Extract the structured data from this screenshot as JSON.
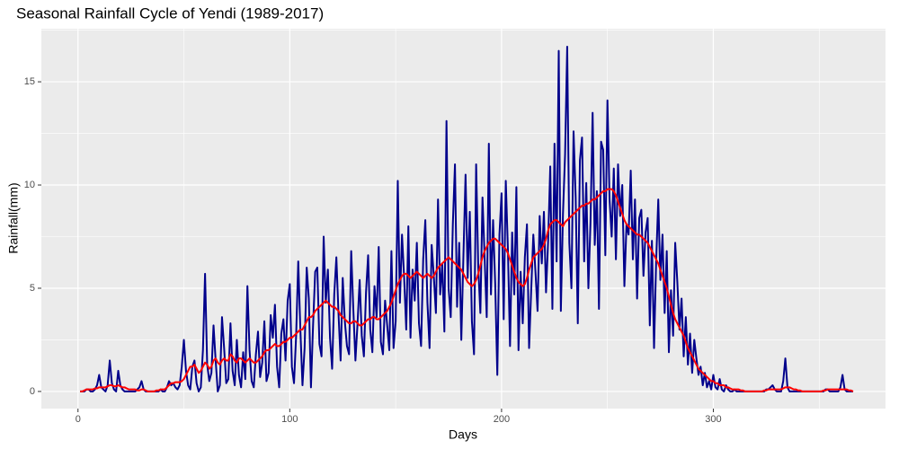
{
  "chart_data": {
    "type": "line",
    "title": "Seasonal Rainfall Cycle of Yendi (1989-2017)",
    "x_label": "Days",
    "y_label": "Rainfall(mm)",
    "x": [
      1,
      2,
      3,
      4,
      5,
      6,
      7,
      8,
      9,
      10,
      11,
      12,
      13,
      14,
      15,
      16,
      17,
      18,
      19,
      20,
      21,
      22,
      23,
      24,
      25,
      26,
      27,
      28,
      29,
      30,
      31,
      32,
      33,
      34,
      35,
      36,
      37,
      38,
      39,
      40,
      41,
      42,
      43,
      44,
      45,
      46,
      47,
      48,
      49,
      50,
      51,
      52,
      53,
      54,
      55,
      56,
      57,
      58,
      59,
      60,
      61,
      62,
      63,
      64,
      65,
      66,
      67,
      68,
      69,
      70,
      71,
      72,
      73,
      74,
      75,
      76,
      77,
      78,
      79,
      80,
      81,
      82,
      83,
      84,
      85,
      86,
      87,
      88,
      89,
      90,
      91,
      92,
      93,
      94,
      95,
      96,
      97,
      98,
      99,
      100,
      101,
      102,
      103,
      104,
      105,
      106,
      107,
      108,
      109,
      110,
      111,
      112,
      113,
      114,
      115,
      116,
      117,
      118,
      119,
      120,
      121,
      122,
      123,
      124,
      125,
      126,
      127,
      128,
      129,
      130,
      131,
      132,
      133,
      134,
      135,
      136,
      137,
      138,
      139,
      140,
      141,
      142,
      143,
      144,
      145,
      146,
      147,
      148,
      149,
      150,
      151,
      152,
      153,
      154,
      155,
      156,
      157,
      158,
      159,
      160,
      161,
      162,
      163,
      164,
      165,
      166,
      167,
      168,
      169,
      170,
      171,
      172,
      173,
      174,
      175,
      176,
      177,
      178,
      179,
      180,
      181,
      182,
      183,
      184,
      185,
      186,
      187,
      188,
      189,
      190,
      191,
      192,
      193,
      194,
      195,
      196,
      197,
      198,
      199,
      200,
      201,
      202,
      203,
      204,
      205,
      206,
      207,
      208,
      209,
      210,
      211,
      212,
      213,
      214,
      215,
      216,
      217,
      218,
      219,
      220,
      221,
      222,
      223,
      224,
      225,
      226,
      227,
      228,
      229,
      230,
      231,
      232,
      233,
      234,
      235,
      236,
      237,
      238,
      239,
      240,
      241,
      242,
      243,
      244,
      245,
      246,
      247,
      248,
      249,
      250,
      251,
      252,
      253,
      254,
      255,
      256,
      257,
      258,
      259,
      260,
      261,
      262,
      263,
      264,
      265,
      266,
      267,
      268,
      269,
      270,
      271,
      272,
      273,
      274,
      275,
      276,
      277,
      278,
      279,
      280,
      281,
      282,
      283,
      284,
      285,
      286,
      287,
      288,
      289,
      290,
      291,
      292,
      293,
      294,
      295,
      296,
      297,
      298,
      299,
      300,
      301,
      302,
      303,
      304,
      305,
      306,
      307,
      308,
      309,
      310,
      311,
      312,
      313,
      314,
      315,
      316,
      317,
      318,
      319,
      320,
      321,
      322,
      323,
      324,
      325,
      326,
      327,
      328,
      329,
      330,
      331,
      332,
      333,
      334,
      335,
      336,
      337,
      338,
      339,
      340,
      341,
      342,
      343,
      344,
      345,
      346,
      347,
      348,
      349,
      350,
      351,
      352,
      353,
      354,
      355,
      356,
      357,
      358,
      359,
      360,
      361,
      362,
      363,
      364,
      365,
      366
    ],
    "series": [
      {
        "color": "#00008b",
        "values": [
          0,
          0,
          0,
          0.1,
          0.1,
          0,
          0,
          0.1,
          0.3,
          0.8,
          0.2,
          0.1,
          0,
          0.3,
          1.5,
          0.4,
          0.1,
          0,
          1.0,
          0.3,
          0.1,
          0,
          0,
          0,
          0,
          0,
          0,
          0.1,
          0.2,
          0.5,
          0.1,
          0,
          0,
          0,
          0,
          0,
          0,
          0,
          0.1,
          0,
          0,
          0.2,
          0.5,
          0.3,
          0.4,
          0.2,
          0.1,
          0.3,
          1.2,
          2.5,
          1.0,
          0.3,
          0.1,
          1.2,
          1.5,
          0.4,
          0,
          0.2,
          2.0,
          5.7,
          1.3,
          0.5,
          0.9,
          3.2,
          1.5,
          0,
          0.3,
          3.6,
          2.1,
          0.4,
          0.6,
          3.3,
          1.0,
          0.3,
          2.5,
          0.8,
          0.2,
          1.9,
          0.6,
          5.1,
          2.0,
          0.5,
          0.2,
          1.8,
          2.9,
          0.7,
          1.4,
          3.4,
          0.5,
          0.9,
          3.7,
          2.6,
          4.2,
          1.2,
          0.2,
          2.8,
          3.5,
          1.5,
          4.4,
          5.2,
          1.2,
          0.4,
          2.7,
          6.3,
          3.0,
          0.3,
          2.1,
          6.0,
          4.5,
          0.2,
          3.2,
          5.8,
          6.0,
          2.3,
          1.7,
          7.5,
          4.3,
          5.9,
          2.6,
          1.1,
          4.7,
          6.5,
          3.8,
          1.5,
          5.5,
          3.4,
          2.2,
          1.8,
          6.8,
          4.0,
          1.5,
          3.3,
          5.4,
          2.7,
          1.7,
          4.8,
          6.6,
          3.0,
          1.9,
          5.1,
          3.6,
          7.0,
          2.4,
          1.8,
          4.4,
          3.2,
          2.0,
          6.8,
          2.1,
          3.4,
          10.2,
          4.3,
          7.6,
          5.5,
          3.0,
          8.0,
          2.6,
          5.9,
          4.4,
          7.2,
          3.3,
          2.2,
          6.4,
          8.3,
          4.3,
          2.1,
          7.1,
          5.6,
          3.8,
          9.3,
          4.7,
          6.2,
          2.9,
          13.1,
          5.0,
          3.6,
          8.1,
          11.0,
          4.1,
          7.2,
          2.5,
          6.6,
          10.5,
          5.5,
          8.7,
          3.4,
          1.8,
          11.0,
          6.0,
          3.8,
          9.4,
          6.5,
          3.6,
          12.0,
          4.7,
          8.3,
          5.2,
          0.8,
          7.6,
          9.6,
          3.5,
          10.2,
          6.9,
          2.2,
          7.7,
          4.7,
          9.9,
          2.0,
          5.8,
          3.3,
          6.5,
          8.1,
          2.1,
          4.9,
          7.6,
          5.8,
          3.9,
          8.5,
          6.2,
          8.7,
          4.8,
          7.3,
          10.9,
          4.0,
          12.0,
          6.3,
          16.5,
          3.9,
          8.6,
          11.5,
          16.7,
          7.2,
          5.0,
          12.6,
          9.4,
          3.3,
          11.2,
          12.3,
          6.3,
          10.1,
          5.0,
          8.2,
          13.5,
          7.1,
          9.7,
          4.0,
          12.1,
          11.7,
          6.6,
          14.1,
          9.3,
          7.5,
          10.8,
          6.4,
          11.0,
          8.5,
          10.0,
          5.1,
          8.1,
          7.6,
          10.7,
          6.4,
          9.3,
          4.5,
          8.4,
          8.8,
          5.6,
          7.7,
          8.4,
          3.2,
          7.3,
          2.1,
          6.3,
          9.3,
          5.4,
          7.6,
          3.8,
          6.8,
          1.9,
          4.9,
          2.7,
          7.2,
          5.3,
          3.0,
          4.5,
          1.7,
          3.6,
          1.3,
          2.8,
          0.9,
          2.5,
          1.6,
          0.8,
          1.2,
          0.3,
          0.9,
          0.2,
          0.5,
          0.1,
          0.8,
          0.2,
          0.1,
          0.6,
          0.1,
          0,
          0.3,
          0.1,
          0,
          0,
          0.1,
          0,
          0,
          0,
          0,
          0,
          0,
          0,
          0,
          0,
          0,
          0,
          0,
          0,
          0,
          0.1,
          0.1,
          0.2,
          0.3,
          0.1,
          0,
          0,
          0,
          0.5,
          1.6,
          0.2,
          0,
          0,
          0,
          0,
          0,
          0,
          0,
          0,
          0,
          0,
          0,
          0,
          0,
          0,
          0,
          0,
          0,
          0.1,
          0.1,
          0,
          0,
          0,
          0,
          0,
          0.2,
          0.8,
          0.1,
          0,
          0,
          0,
          0
        ]
      },
      {
        "color": "#ff0000",
        "values": [
          0,
          0,
          0.05,
          0.1,
          0.1,
          0.1,
          0.1,
          0.15,
          0.15,
          0.2,
          0.2,
          0.2,
          0.2,
          0.25,
          0.3,
          0.3,
          0.25,
          0.25,
          0.3,
          0.25,
          0.2,
          0.2,
          0.15,
          0.1,
          0.1,
          0.1,
          0.1,
          0.05,
          0.05,
          0.1,
          0.1,
          0.05,
          0,
          0,
          0,
          0,
          0.05,
          0.05,
          0.1,
          0.1,
          0.1,
          0.2,
          0.3,
          0.4,
          0.4,
          0.45,
          0.45,
          0.45,
          0.5,
          0.6,
          0.8,
          1.0,
          1.2,
          1.2,
          1.3,
          1.1,
          0.9,
          1.0,
          1.2,
          1.4,
          1.3,
          1.1,
          1.2,
          1.5,
          1.6,
          1.4,
          1.3,
          1.5,
          1.6,
          1.5,
          1.5,
          1.8,
          1.7,
          1.5,
          1.4,
          1.6,
          1.6,
          1.5,
          1.4,
          1.5,
          1.6,
          1.5,
          1.4,
          1.4,
          1.5,
          1.6,
          1.7,
          1.9,
          2.0,
          2.0,
          2.1,
          2.2,
          2.3,
          2.2,
          2.2,
          2.3,
          2.4,
          2.4,
          2.5,
          2.6,
          2.6,
          2.7,
          2.8,
          2.9,
          3.0,
          3.0,
          3.2,
          3.4,
          3.6,
          3.6,
          3.7,
          3.9,
          4.0,
          4.1,
          4.2,
          4.3,
          4.4,
          4.3,
          4.2,
          4.1,
          4.1,
          4.0,
          3.9,
          3.7,
          3.6,
          3.5,
          3.4,
          3.3,
          3.3,
          3.4,
          3.4,
          3.3,
          3.2,
          3.2,
          3.3,
          3.4,
          3.5,
          3.5,
          3.6,
          3.6,
          3.5,
          3.5,
          3.6,
          3.7,
          3.8,
          3.9,
          4.1,
          4.3,
          4.6,
          4.9,
          5.2,
          5.4,
          5.6,
          5.7,
          5.7,
          5.6,
          5.5,
          5.6,
          5.7,
          5.8,
          5.7,
          5.6,
          5.5,
          5.6,
          5.7,
          5.6,
          5.5,
          5.6,
          5.8,
          6.0,
          6.1,
          6.2,
          6.3,
          6.4,
          6.5,
          6.4,
          6.3,
          6.2,
          6.1,
          6.0,
          5.9,
          5.7,
          5.5,
          5.3,
          5.2,
          5.1,
          5.2,
          5.4,
          5.7,
          6.1,
          6.5,
          6.8,
          7.0,
          7.2,
          7.3,
          7.4,
          7.4,
          7.3,
          7.2,
          7.1,
          7.0,
          6.9,
          6.7,
          6.4,
          6.1,
          5.8,
          5.5,
          5.3,
          5.2,
          5.1,
          5.2,
          5.5,
          5.9,
          6.2,
          6.5,
          6.6,
          6.7,
          6.8,
          6.9,
          7.1,
          7.4,
          7.8,
          8.1,
          8.2,
          8.3,
          8.3,
          8.2,
          8.1,
          8.0,
          8.2,
          8.3,
          8.4,
          8.5,
          8.6,
          8.7,
          8.8,
          8.9,
          9.0,
          9.0,
          9.1,
          9.1,
          9.2,
          9.3,
          9.3,
          9.4,
          9.5,
          9.6,
          9.7,
          9.7,
          9.8,
          9.8,
          9.8,
          9.7,
          9.5,
          9.2,
          8.9,
          8.6,
          8.3,
          8.1,
          8.0,
          7.9,
          7.8,
          7.7,
          7.6,
          7.6,
          7.5,
          7.4,
          7.3,
          7.2,
          7.0,
          6.8,
          6.6,
          6.4,
          6.2,
          5.9,
          5.6,
          5.3,
          5.0,
          4.6,
          4.2,
          3.8,
          3.5,
          3.3,
          3.1,
          2.9,
          2.7,
          2.4,
          2.1,
          1.9,
          1.7,
          1.5,
          1.3,
          1.1,
          1.0,
          0.9,
          0.8,
          0.7,
          0.6,
          0.5,
          0.5,
          0.4,
          0.4,
          0.3,
          0.3,
          0.3,
          0.2,
          0.2,
          0.15,
          0.1,
          0.1,
          0.1,
          0.1,
          0.05,
          0.05,
          0,
          0,
          0,
          0,
          0,
          0,
          0,
          0,
          0,
          0.05,
          0.05,
          0.1,
          0.1,
          0.1,
          0.1,
          0.1,
          0.1,
          0.1,
          0.15,
          0.2,
          0.2,
          0.2,
          0.15,
          0.1,
          0.1,
          0.05,
          0.05,
          0,
          0,
          0,
          0,
          0,
          0,
          0,
          0,
          0,
          0,
          0.05,
          0.05,
          0.1,
          0.1,
          0.1,
          0.1,
          0.1,
          0.1,
          0.1,
          0.1,
          0.1,
          0.1,
          0.05,
          0.05,
          0
        ]
      }
    ],
    "xlim": [
      -17.3,
      381.3
    ],
    "ylim": [
      -0.83,
      17.57
    ],
    "xticks": [
      0,
      100,
      200,
      300
    ],
    "yticks": [
      0,
      5,
      10,
      15
    ],
    "grid": true
  }
}
